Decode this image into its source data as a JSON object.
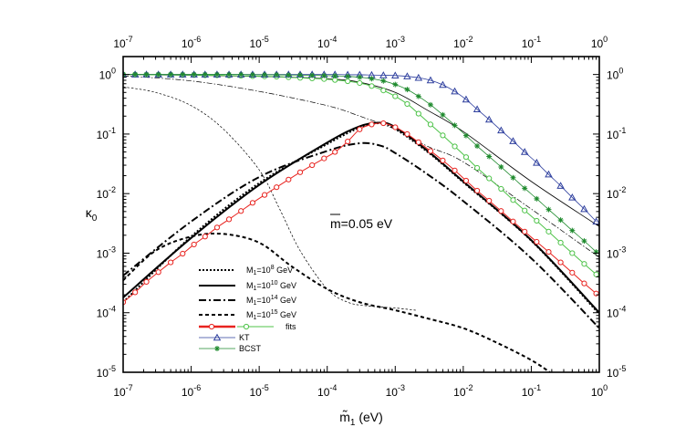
{
  "chart_data": {
    "type": "line",
    "x_scale": "log",
    "y_scale": "log",
    "xlim": [
      1e-07,
      1
    ],
    "ylim": [
      1e-05,
      2
    ],
    "xlabel": "m̃",
    "xlabel_sub": "1",
    "xlabel_unit": " (eV)",
    "ylabel": "κ",
    "ylabel_sub": "0",
    "x_tick_labels": [
      {
        "base": "10",
        "exp": "-7"
      },
      {
        "base": "10",
        "exp": "-6"
      },
      {
        "base": "10",
        "exp": "-5"
      },
      {
        "base": "10",
        "exp": "-4"
      },
      {
        "base": "10",
        "exp": "-3"
      },
      {
        "base": "10",
        "exp": "-2"
      },
      {
        "base": "10",
        "exp": "-1"
      },
      {
        "base": "10",
        "exp": "0"
      }
    ],
    "y_tick_labels": [
      {
        "base": "10",
        "exp": "-5"
      },
      {
        "base": "10",
        "exp": "-4"
      },
      {
        "base": "10",
        "exp": "-3"
      },
      {
        "base": "10",
        "exp": "-2"
      },
      {
        "base": "10",
        "exp": "-1"
      },
      {
        "base": "10",
        "exp": "0"
      }
    ],
    "mirror_axes": true,
    "grid": false,
    "annotation": {
      "bar": "m",
      "text": "=0.05 eV"
    },
    "legend": {
      "placement": "bottom-left",
      "entries": [
        {
          "text": "M",
          "sub": "1",
          "mid": "=10",
          "sup": "8",
          "unit": " GeV",
          "style": "dotted"
        },
        {
          "text": "M",
          "sub": "1",
          "mid": "=10",
          "sup": "10",
          "unit": " GeV",
          "style": "solid"
        },
        {
          "text": "M",
          "sub": "1",
          "mid": "=10",
          "sup": "14",
          "unit": " GeV",
          "style": "dashdot"
        },
        {
          "text": "M",
          "sub": "1",
          "mid": "=10",
          "sup": "15",
          "unit": " GeV",
          "style": "dashed"
        },
        {
          "text": "fits",
          "style": "fits"
        },
        {
          "text": "KT",
          "style": "kt"
        },
        {
          "text": "BCST",
          "style": "bcst"
        }
      ]
    },
    "series": [
      {
        "id": "thin-solid",
        "style": "thin-solid",
        "x": [
          1e-07,
          1e-06,
          1e-05,
          0.0001,
          0.0003,
          0.001,
          0.003,
          0.01,
          0.1,
          1
        ],
        "y": [
          1.0,
          0.97,
          0.93,
          0.85,
          0.74,
          0.5,
          0.25,
          0.11,
          0.016,
          0.0028
        ]
      },
      {
        "id": "thin-dashdot",
        "style": "thin-dashdot",
        "x": [
          1e-07,
          1e-06,
          1e-05,
          0.0001,
          0.0003,
          0.001,
          0.003,
          0.01,
          0.1,
          1
        ],
        "y": [
          0.95,
          0.78,
          0.52,
          0.3,
          0.2,
          0.12,
          0.062,
          0.034,
          0.0055,
          0.00085
        ]
      },
      {
        "id": "thin-dashed",
        "style": "thin-dashed",
        "x": [
          1e-07,
          3e-07,
          1e-06,
          3e-06,
          1e-05,
          2e-05,
          4e-05,
          0.0001,
          0.0002,
          0.0004,
          0.001,
          0.002
        ],
        "y": [
          0.62,
          0.5,
          0.3,
          0.12,
          0.025,
          0.0055,
          0.0011,
          0.00025,
          0.00015,
          0.00013,
          0.00012,
          0.00011
        ]
      },
      {
        "id": "M8",
        "style": "dotted",
        "x": [
          1e-07,
          1e-06,
          1e-05,
          0.0001,
          0.0003,
          0.0006,
          0.001,
          0.003,
          0.01,
          0.1,
          1
        ],
        "y": [
          0.00015,
          0.0019,
          0.015,
          0.068,
          0.128,
          0.152,
          0.122,
          0.05,
          0.0155,
          0.00162,
          9.5e-05
        ]
      },
      {
        "id": "M10",
        "style": "solid",
        "x": [
          1e-07,
          1e-06,
          1e-05,
          0.0001,
          0.0003,
          0.0006,
          0.001,
          0.003,
          0.01,
          0.1,
          1
        ],
        "y": [
          0.00018,
          0.0018,
          0.014,
          0.072,
          0.135,
          0.155,
          0.13,
          0.052,
          0.016,
          0.00165,
          0.0001
        ]
      },
      {
        "id": "M14",
        "style": "dashdot",
        "x": [
          1e-07,
          1e-06,
          1e-05,
          0.0001,
          0.0003,
          0.0006,
          0.001,
          0.003,
          0.01,
          0.1,
          1
        ],
        "y": [
          0.00042,
          0.0034,
          0.019,
          0.052,
          0.07,
          0.064,
          0.048,
          0.021,
          0.0075,
          0.00082,
          5.5e-05
        ]
      },
      {
        "id": "M15",
        "style": "dashed",
        "x": [
          1e-07,
          3e-07,
          1e-06,
          3e-06,
          1e-05,
          3e-05,
          0.0001,
          0.0003,
          0.001,
          0.003,
          0.01,
          0.03,
          0.1,
          0.2
        ],
        "y": [
          0.00035,
          0.0011,
          0.0019,
          0.0021,
          0.0015,
          0.0006,
          0.00025,
          0.00015,
          0.00011,
          8e-05,
          5.5e-05,
          3.2e-05,
          1.6e-05,
          9.5e-06
        ]
      },
      {
        "id": "fit-red",
        "style": "fit-red",
        "x": [
          1e-07,
          1.5e-07,
          2.2e-07,
          3.3e-07,
          5e-07,
          7.5e-07,
          1.1e-06,
          1.6e-06,
          2.4e-06,
          3.6e-06,
          5.4e-06,
          8e-06,
          1.2e-05,
          1.8e-05,
          2.7e-05,
          4e-05,
          6e-05,
          9e-05,
          0.00013,
          0.0002,
          0.0003,
          0.00045,
          0.00067,
          0.001,
          0.0015,
          0.0022,
          0.0033,
          0.005,
          0.0075,
          0.011,
          0.016,
          0.024,
          0.036,
          0.054,
          0.08,
          0.12,
          0.18,
          0.27,
          0.4,
          0.6,
          0.9
        ],
        "y": [
          0.00015,
          0.00022,
          0.00033,
          0.00048,
          0.0007,
          0.00098,
          0.0014,
          0.0019,
          0.0027,
          0.0037,
          0.0051,
          0.007,
          0.0095,
          0.0128,
          0.0172,
          0.0228,
          0.03,
          0.039,
          0.05,
          0.075,
          0.12,
          0.145,
          0.152,
          0.13,
          0.1,
          0.073,
          0.052,
          0.036,
          0.0245,
          0.0165,
          0.0112,
          0.0076,
          0.0051,
          0.0034,
          0.0023,
          0.00155,
          0.00105,
          0.0007,
          0.00047,
          0.00031,
          0.00021
        ]
      },
      {
        "id": "fit-green",
        "style": "fit-green",
        "x": [
          1e-07,
          1.5e-07,
          2.2e-07,
          3.3e-07,
          5e-07,
          7.5e-07,
          1.1e-06,
          1.6e-06,
          2.4e-06,
          3.6e-06,
          5.4e-06,
          8e-06,
          1.2e-05,
          1.8e-05,
          2.7e-05,
          4e-05,
          6e-05,
          9e-05,
          0.00013,
          0.0002,
          0.0003,
          0.00045,
          0.00067,
          0.001,
          0.0015,
          0.0022,
          0.0033,
          0.005,
          0.0075,
          0.011,
          0.016,
          0.024,
          0.036,
          0.054,
          0.08,
          0.12,
          0.18,
          0.27,
          0.4,
          0.6,
          0.9
        ],
        "y": [
          1.0,
          1.0,
          0.99,
          0.99,
          0.99,
          0.98,
          0.98,
          0.97,
          0.97,
          0.96,
          0.95,
          0.94,
          0.93,
          0.92,
          0.9,
          0.88,
          0.86,
          0.84,
          0.81,
          0.77,
          0.72,
          0.64,
          0.54,
          0.43,
          0.32,
          0.22,
          0.145,
          0.095,
          0.062,
          0.041,
          0.027,
          0.018,
          0.012,
          0.0078,
          0.0052,
          0.0035,
          0.0023,
          0.0015,
          0.001,
          0.00066,
          0.00044
        ]
      },
      {
        "id": "KT",
        "style": "kt",
        "x": [
          1e-07,
          1.5e-07,
          2.2e-07,
          3.3e-07,
          5e-07,
          7.5e-07,
          1.1e-06,
          1.6e-06,
          2.4e-06,
          3.6e-06,
          5.4e-06,
          8e-06,
          1.2e-05,
          1.8e-05,
          2.7e-05,
          4e-05,
          6e-05,
          9e-05,
          0.00013,
          0.0002,
          0.0003,
          0.00045,
          0.00067,
          0.001,
          0.0015,
          0.0022,
          0.0033,
          0.005,
          0.0075,
          0.011,
          0.016,
          0.024,
          0.036,
          0.054,
          0.08,
          0.12,
          0.18,
          0.27,
          0.4,
          0.6,
          0.9
        ],
        "y": [
          1.0,
          1.0,
          1.0,
          1.0,
          1.0,
          1.0,
          1.0,
          1.0,
          1.0,
          1.0,
          1.0,
          1.0,
          1.0,
          1.0,
          1.0,
          1.0,
          1.0,
          1.0,
          1.0,
          0.99,
          0.99,
          0.98,
          0.97,
          0.96,
          0.93,
          0.88,
          0.8,
          0.67,
          0.52,
          0.38,
          0.26,
          0.175,
          0.115,
          0.076,
          0.05,
          0.033,
          0.021,
          0.0135,
          0.0086,
          0.0055,
          0.0034
        ]
      },
      {
        "id": "BCST",
        "style": "bcst",
        "x": [
          1e-07,
          1.5e-07,
          2.2e-07,
          3.3e-07,
          5e-07,
          7.5e-07,
          1.1e-06,
          1.6e-06,
          2.4e-06,
          3.6e-06,
          5.4e-06,
          8e-06,
          1.2e-05,
          1.8e-05,
          2.7e-05,
          4e-05,
          6e-05,
          9e-05,
          0.00013,
          0.0002,
          0.0003,
          0.00045,
          0.00067,
          0.001,
          0.0015,
          0.0022,
          0.0033,
          0.005,
          0.0075,
          0.011,
          0.016,
          0.024,
          0.036,
          0.054,
          0.08,
          0.12,
          0.18,
          0.27,
          0.4,
          0.6,
          0.9
        ],
        "y": [
          1.0,
          1.0,
          1.0,
          1.0,
          1.0,
          1.0,
          1.0,
          1.0,
          1.0,
          1.0,
          1.0,
          0.99,
          0.99,
          0.99,
          0.98,
          0.98,
          0.97,
          0.96,
          0.95,
          0.93,
          0.9,
          0.85,
          0.78,
          0.68,
          0.56,
          0.43,
          0.31,
          0.21,
          0.14,
          0.094,
          0.063,
          0.042,
          0.028,
          0.0185,
          0.0123,
          0.0082,
          0.0054,
          0.0036,
          0.0024,
          0.0016,
          0.00105
        ]
      }
    ],
    "colors": {
      "frame": "#000000",
      "fit_red": "#e8231f",
      "fit_green": "#4fc34a",
      "kt": "#2e3f9e",
      "bcst": "#1e8a2d"
    }
  }
}
